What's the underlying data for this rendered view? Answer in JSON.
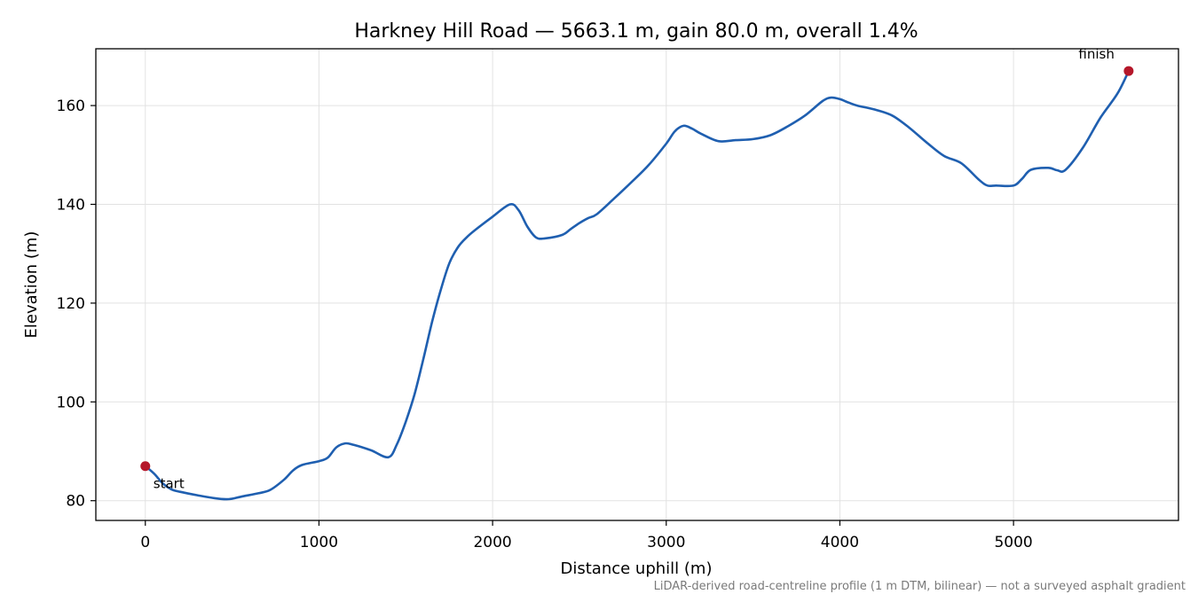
{
  "chart_data": {
    "type": "line",
    "title": "Harkney Hill Road — 5663.1 m, gain 80.0 m, overall 1.4%",
    "xlabel": "Distance uphill (m)",
    "ylabel": "Elevation (m)",
    "xlim": [
      -285,
      5950
    ],
    "ylim": [
      76,
      171.5
    ],
    "xticks": [
      0,
      1000,
      2000,
      3000,
      4000,
      5000
    ],
    "yticks": [
      80,
      100,
      120,
      140,
      160
    ],
    "xtick_labels": [
      "0",
      "1000",
      "2000",
      "3000",
      "4000",
      "5000"
    ],
    "ytick_labels": [
      "80",
      "100",
      "120",
      "140",
      "160"
    ],
    "grid": true,
    "line_color": "#1f5fb0",
    "marker_color": "#b5172a",
    "footnote": "LiDAR-derived road-centreline profile (1 m DTM, bilinear) — not a surveyed asphalt gradient",
    "series": [
      {
        "x": [
          0,
          50,
          100,
          150,
          200,
          300,
          400,
          480,
          550,
          650,
          720,
          800,
          850,
          900,
          1000,
          1050,
          1100,
          1150,
          1200,
          1300,
          1400,
          1450,
          1500,
          1550,
          1600,
          1650,
          1700,
          1750,
          1800,
          1850,
          1900,
          2000,
          2100,
          2150,
          2200,
          2250,
          2300,
          2400,
          2450,
          2500,
          2550,
          2600,
          2700,
          2800,
          2900,
          3000,
          3050,
          3100,
          3150,
          3200,
          3300,
          3400,
          3500,
          3600,
          3700,
          3800,
          3900,
          3950,
          4000,
          4050,
          4100,
          4200,
          4300,
          4400,
          4500,
          4600,
          4700,
          4800,
          4850,
          4900,
          5000,
          5050,
          5100,
          5200,
          5250,
          5300,
          5400,
          5500,
          5600,
          5663.1
        ],
        "y": [
          87,
          85.5,
          83.5,
          82.3,
          81.8,
          81.1,
          80.5,
          80.3,
          80.8,
          81.5,
          82.2,
          84.3,
          86.1,
          87.2,
          88.0,
          88.7,
          90.8,
          91.6,
          91.3,
          90.2,
          88.8,
          91.5,
          96.0,
          101.5,
          108.5,
          116.0,
          122.5,
          128.0,
          131.3,
          133.3,
          134.8,
          137.5,
          140.0,
          138.8,
          135.5,
          133.3,
          133.1,
          133.8,
          135.0,
          136.2,
          137.2,
          138.0,
          141.2,
          144.5,
          148.0,
          152.3,
          154.8,
          155.9,
          155.3,
          154.3,
          152.8,
          153.0,
          153.2,
          154.0,
          155.8,
          158.0,
          160.9,
          161.6,
          161.3,
          160.6,
          160.0,
          159.2,
          158.0,
          155.5,
          152.5,
          149.8,
          148.3,
          145.0,
          143.8,
          143.8,
          143.8,
          145.2,
          147.0,
          147.4,
          146.9,
          147.0,
          151.5,
          157.5,
          162.5,
          167.0
        ]
      }
    ],
    "annotations": [
      {
        "label": "start",
        "x": 0,
        "y": 87,
        "position": "below-right"
      },
      {
        "label": "finish",
        "x": 5663.1,
        "y": 167,
        "position": "above-left"
      }
    ]
  }
}
